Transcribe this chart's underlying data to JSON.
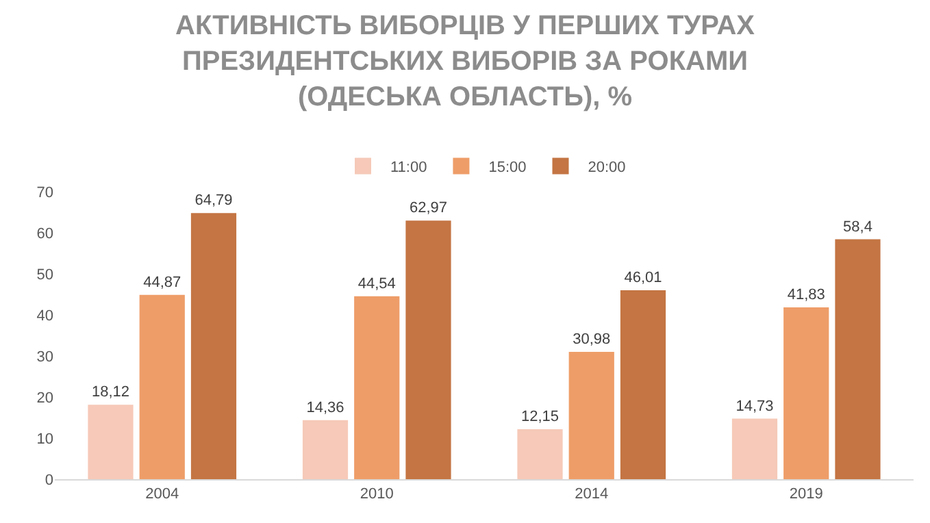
{
  "chart_data": {
    "type": "bar",
    "title": "АКТИВНІСТЬ ВИБОРЦІВ У ПЕРШИХ ТУРАХ\nПРЕЗИДЕНТСЬКИХ ВИБОРІВ ЗА РОКАМИ\n(ОДЕСЬКА ОБЛАСТЬ), %",
    "categories": [
      "2004",
      "2010",
      "2014",
      "2019"
    ],
    "series": [
      {
        "name": "11:00",
        "color": "#f6c9b8",
        "values": [
          18.12,
          14.36,
          12.15,
          14.73
        ],
        "value_labels": [
          "18,12",
          "14,36",
          "12,15",
          "14,73"
        ]
      },
      {
        "name": "15:00",
        "color": "#ee9d68",
        "values": [
          44.87,
          44.54,
          30.98,
          41.83
        ],
        "value_labels": [
          "44,87",
          "44,54",
          "30,98",
          "41,83"
        ]
      },
      {
        "name": "20:00",
        "color": "#c47543",
        "values": [
          64.79,
          62.97,
          46.01,
          58.4
        ],
        "value_labels": [
          "64,79",
          "62,97",
          "46,01",
          "58,4"
        ]
      }
    ],
    "ylim": [
      0,
      70
    ],
    "yticks": [
      0,
      10,
      20,
      30,
      40,
      50,
      60,
      70
    ],
    "grid": false,
    "legend": "top"
  }
}
